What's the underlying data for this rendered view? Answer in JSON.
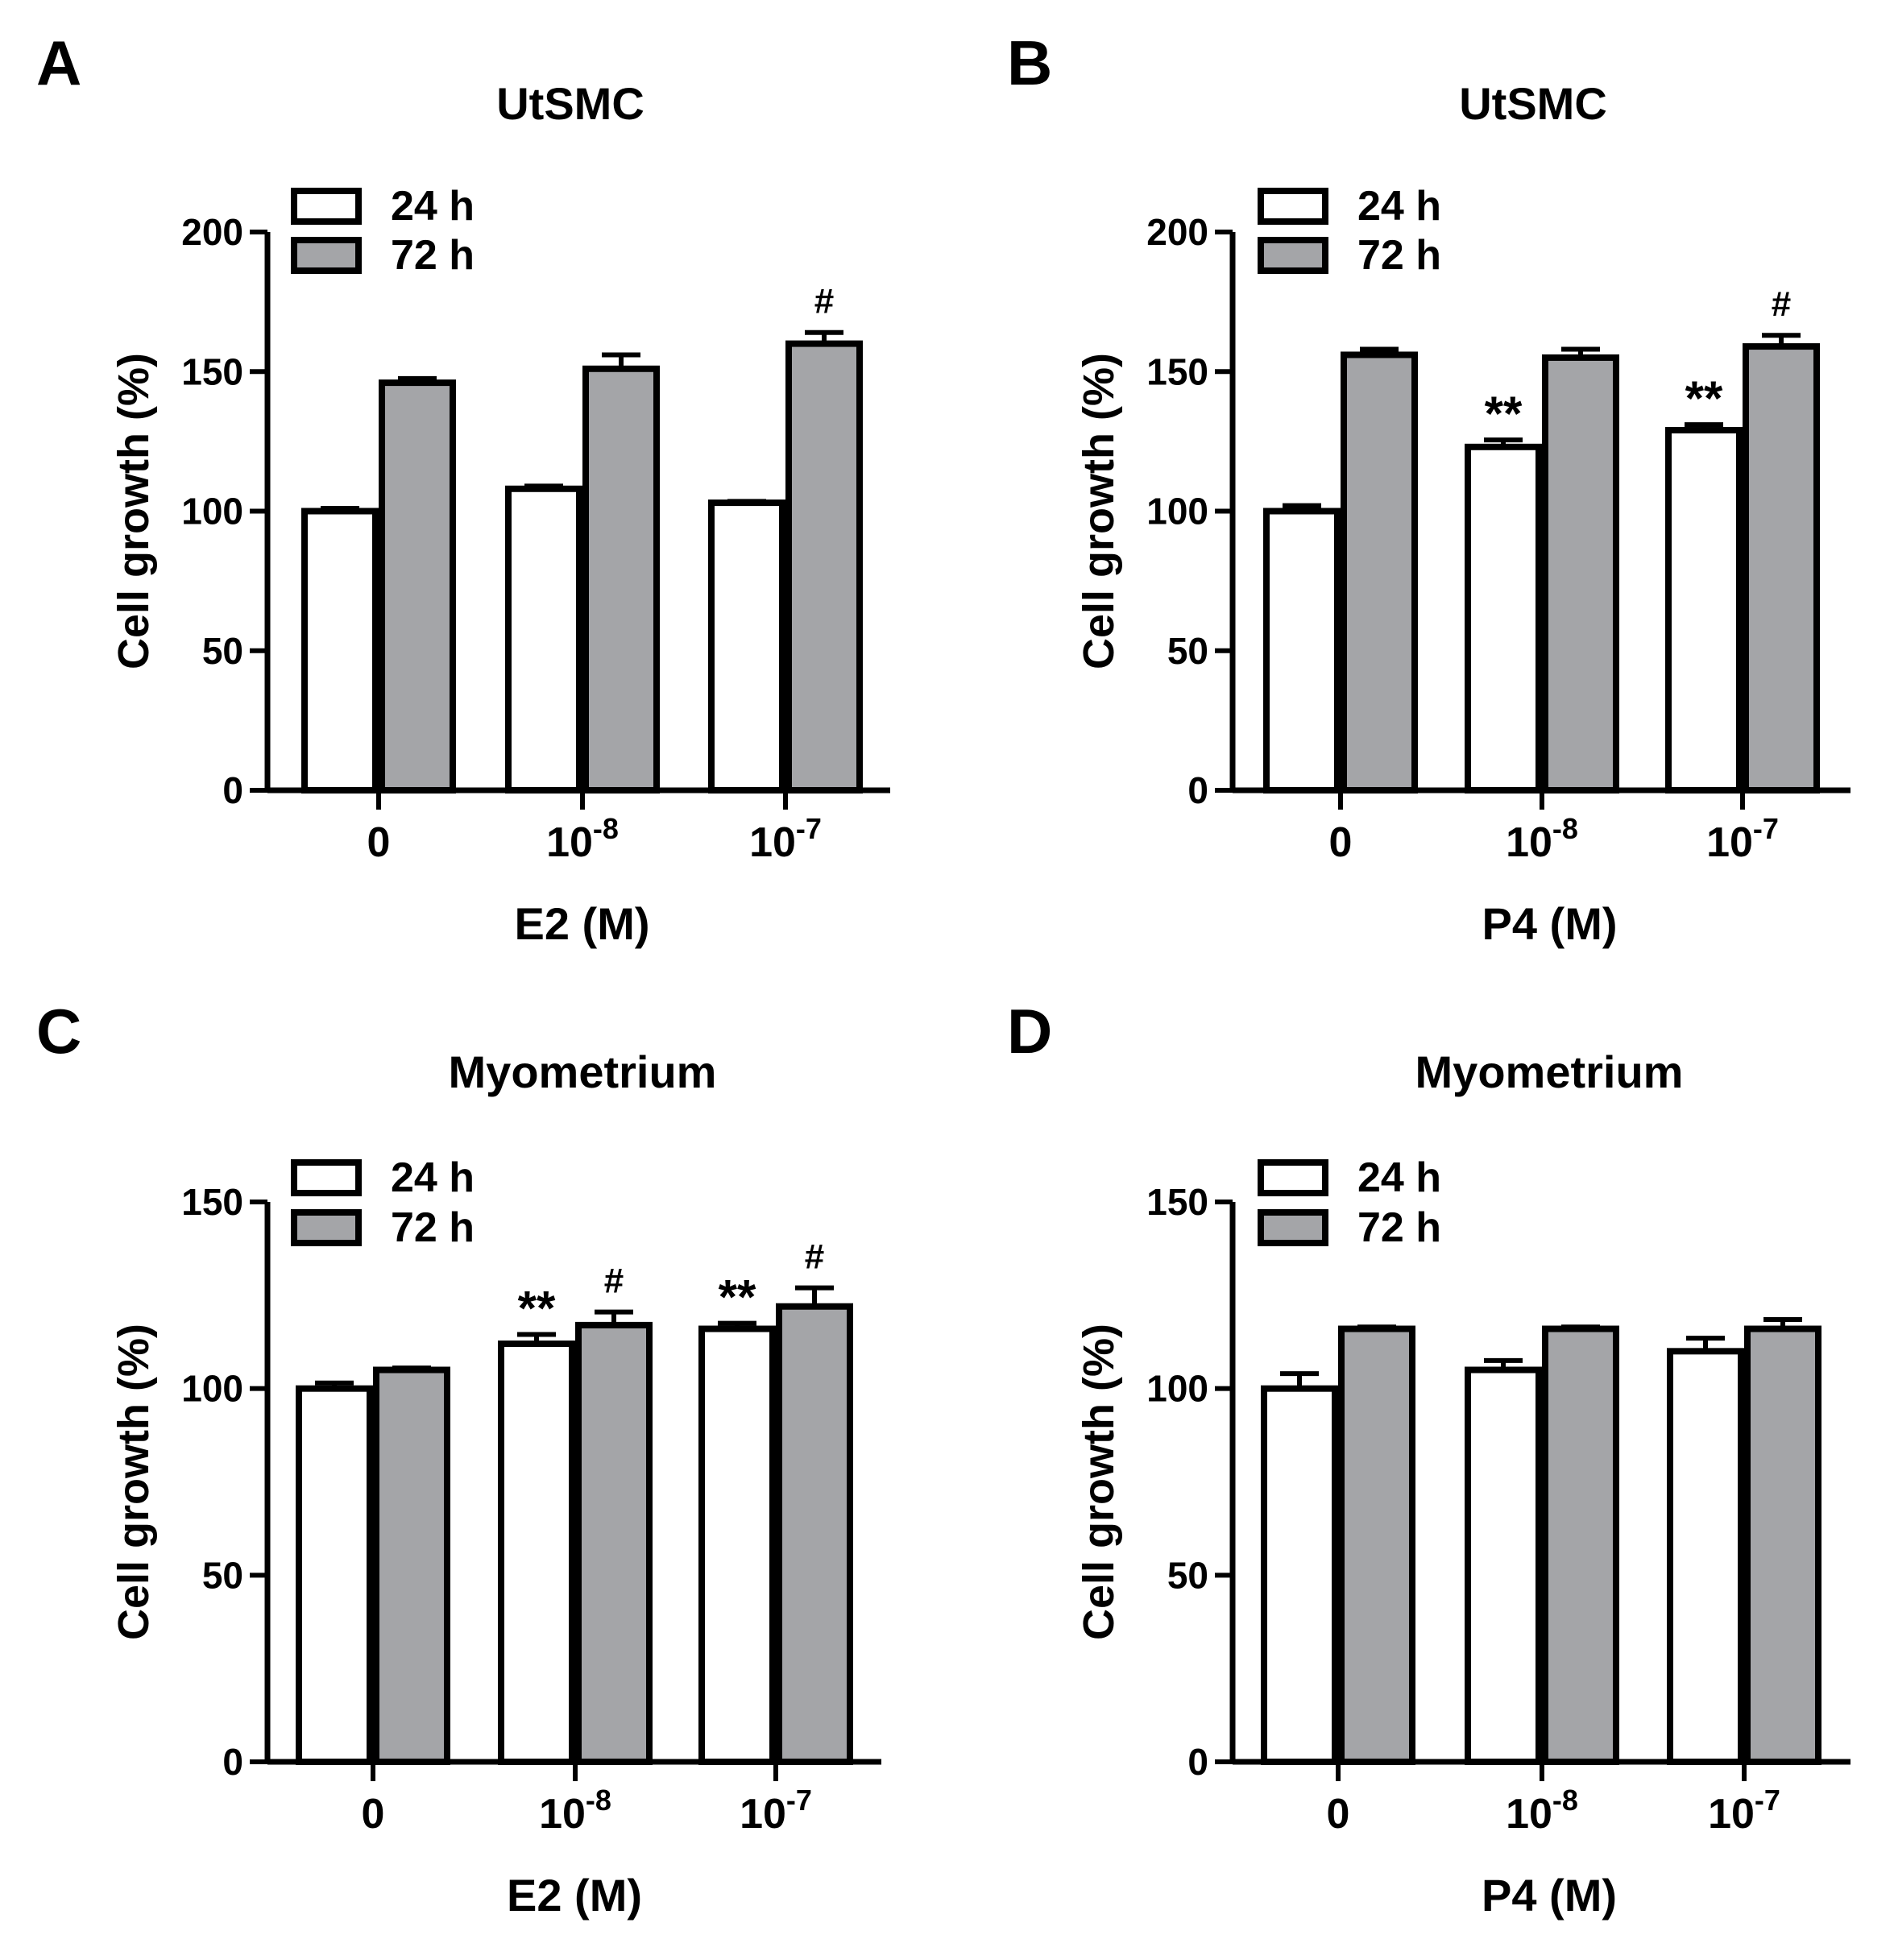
{
  "figure": {
    "colors": {
      "bar_24h": "#ffffff",
      "bar_72h": "#a4a5a8",
      "stroke": "#000000"
    }
  },
  "chart_data": [
    {
      "panel_label": "A",
      "type": "bar",
      "title": "UtSMC",
      "xlabel": "E2 (M)",
      "ylabel": "Cell growth  (%)",
      "ylim": [
        0,
        200
      ],
      "yticks": [
        0,
        50,
        100,
        150,
        200
      ],
      "categories": [
        {
          "base": "0",
          "exp": ""
        },
        {
          "base": "10",
          "exp": "-8"
        },
        {
          "base": "10",
          "exp": "-7"
        }
      ],
      "legend": [
        "24 h",
        "72 h"
      ],
      "series": [
        {
          "name": "24 h",
          "values": [
            100,
            108,
            103
          ],
          "errors": [
            1,
            1,
            0.5
          ],
          "annotations": [
            "",
            "",
            ""
          ]
        },
        {
          "name": "72 h",
          "values": [
            146,
            151,
            160
          ],
          "errors": [
            1.5,
            5,
            4
          ],
          "annotations": [
            "",
            "",
            "#"
          ]
        }
      ]
    },
    {
      "panel_label": "B",
      "type": "bar",
      "title": "UtSMC",
      "xlabel": "P4 (M)",
      "ylabel": "Cell growth  (%)",
      "ylim": [
        0,
        200
      ],
      "yticks": [
        0,
        50,
        100,
        150,
        200
      ],
      "categories": [
        {
          "base": "0",
          "exp": ""
        },
        {
          "base": "10",
          "exp": "-8"
        },
        {
          "base": "10",
          "exp": "-7"
        }
      ],
      "legend": [
        "24 h",
        "72 h"
      ],
      "series": [
        {
          "name": "24 h",
          "values": [
            100,
            123,
            129
          ],
          "errors": [
            2,
            2.5,
            2
          ],
          "annotations": [
            "",
            "**",
            "**"
          ]
        },
        {
          "name": "72 h",
          "values": [
            156,
            155,
            159
          ],
          "errors": [
            2,
            3,
            4
          ],
          "annotations": [
            "",
            "",
            "#"
          ]
        }
      ]
    },
    {
      "panel_label": "C",
      "type": "bar",
      "title": "Myometrium",
      "xlabel": "E2 (M)",
      "ylabel": "Cell growth  (%)",
      "ylim": [
        0,
        150
      ],
      "yticks": [
        0,
        50,
        100,
        150
      ],
      "categories": [
        {
          "base": "0",
          "exp": ""
        },
        {
          "base": "10",
          "exp": "-8"
        },
        {
          "base": "10",
          "exp": "-7"
        }
      ],
      "legend": [
        "24 h",
        "72 h"
      ],
      "series": [
        {
          "name": "24 h",
          "values": [
            100,
            112,
            116
          ],
          "errors": [
            1.5,
            2.5,
            1.5
          ],
          "annotations": [
            "",
            "**",
            "**"
          ]
        },
        {
          "name": "72 h",
          "values": [
            105,
            117,
            122
          ],
          "errors": [
            0.5,
            3.5,
            5
          ],
          "annotations": [
            "",
            "#",
            "#"
          ]
        }
      ]
    },
    {
      "panel_label": "D",
      "type": "bar",
      "title": "Myometrium",
      "xlabel": "P4 (M)",
      "ylabel": "Cell growth  (%)",
      "ylim": [
        0,
        150
      ],
      "yticks": [
        0,
        50,
        100,
        150
      ],
      "categories": [
        {
          "base": "0",
          "exp": ""
        },
        {
          "base": "10",
          "exp": "-8"
        },
        {
          "base": "10",
          "exp": "-7"
        }
      ],
      "legend": [
        "24 h",
        "72 h"
      ],
      "series": [
        {
          "name": "24 h",
          "values": [
            100,
            105,
            110
          ],
          "errors": [
            4,
            2.5,
            3.5
          ],
          "annotations": [
            "",
            "",
            ""
          ]
        },
        {
          "name": "72 h",
          "values": [
            116,
            116,
            116
          ],
          "errors": [
            0.5,
            0.5,
            2.5
          ],
          "annotations": [
            "",
            "",
            ""
          ]
        }
      ]
    }
  ]
}
